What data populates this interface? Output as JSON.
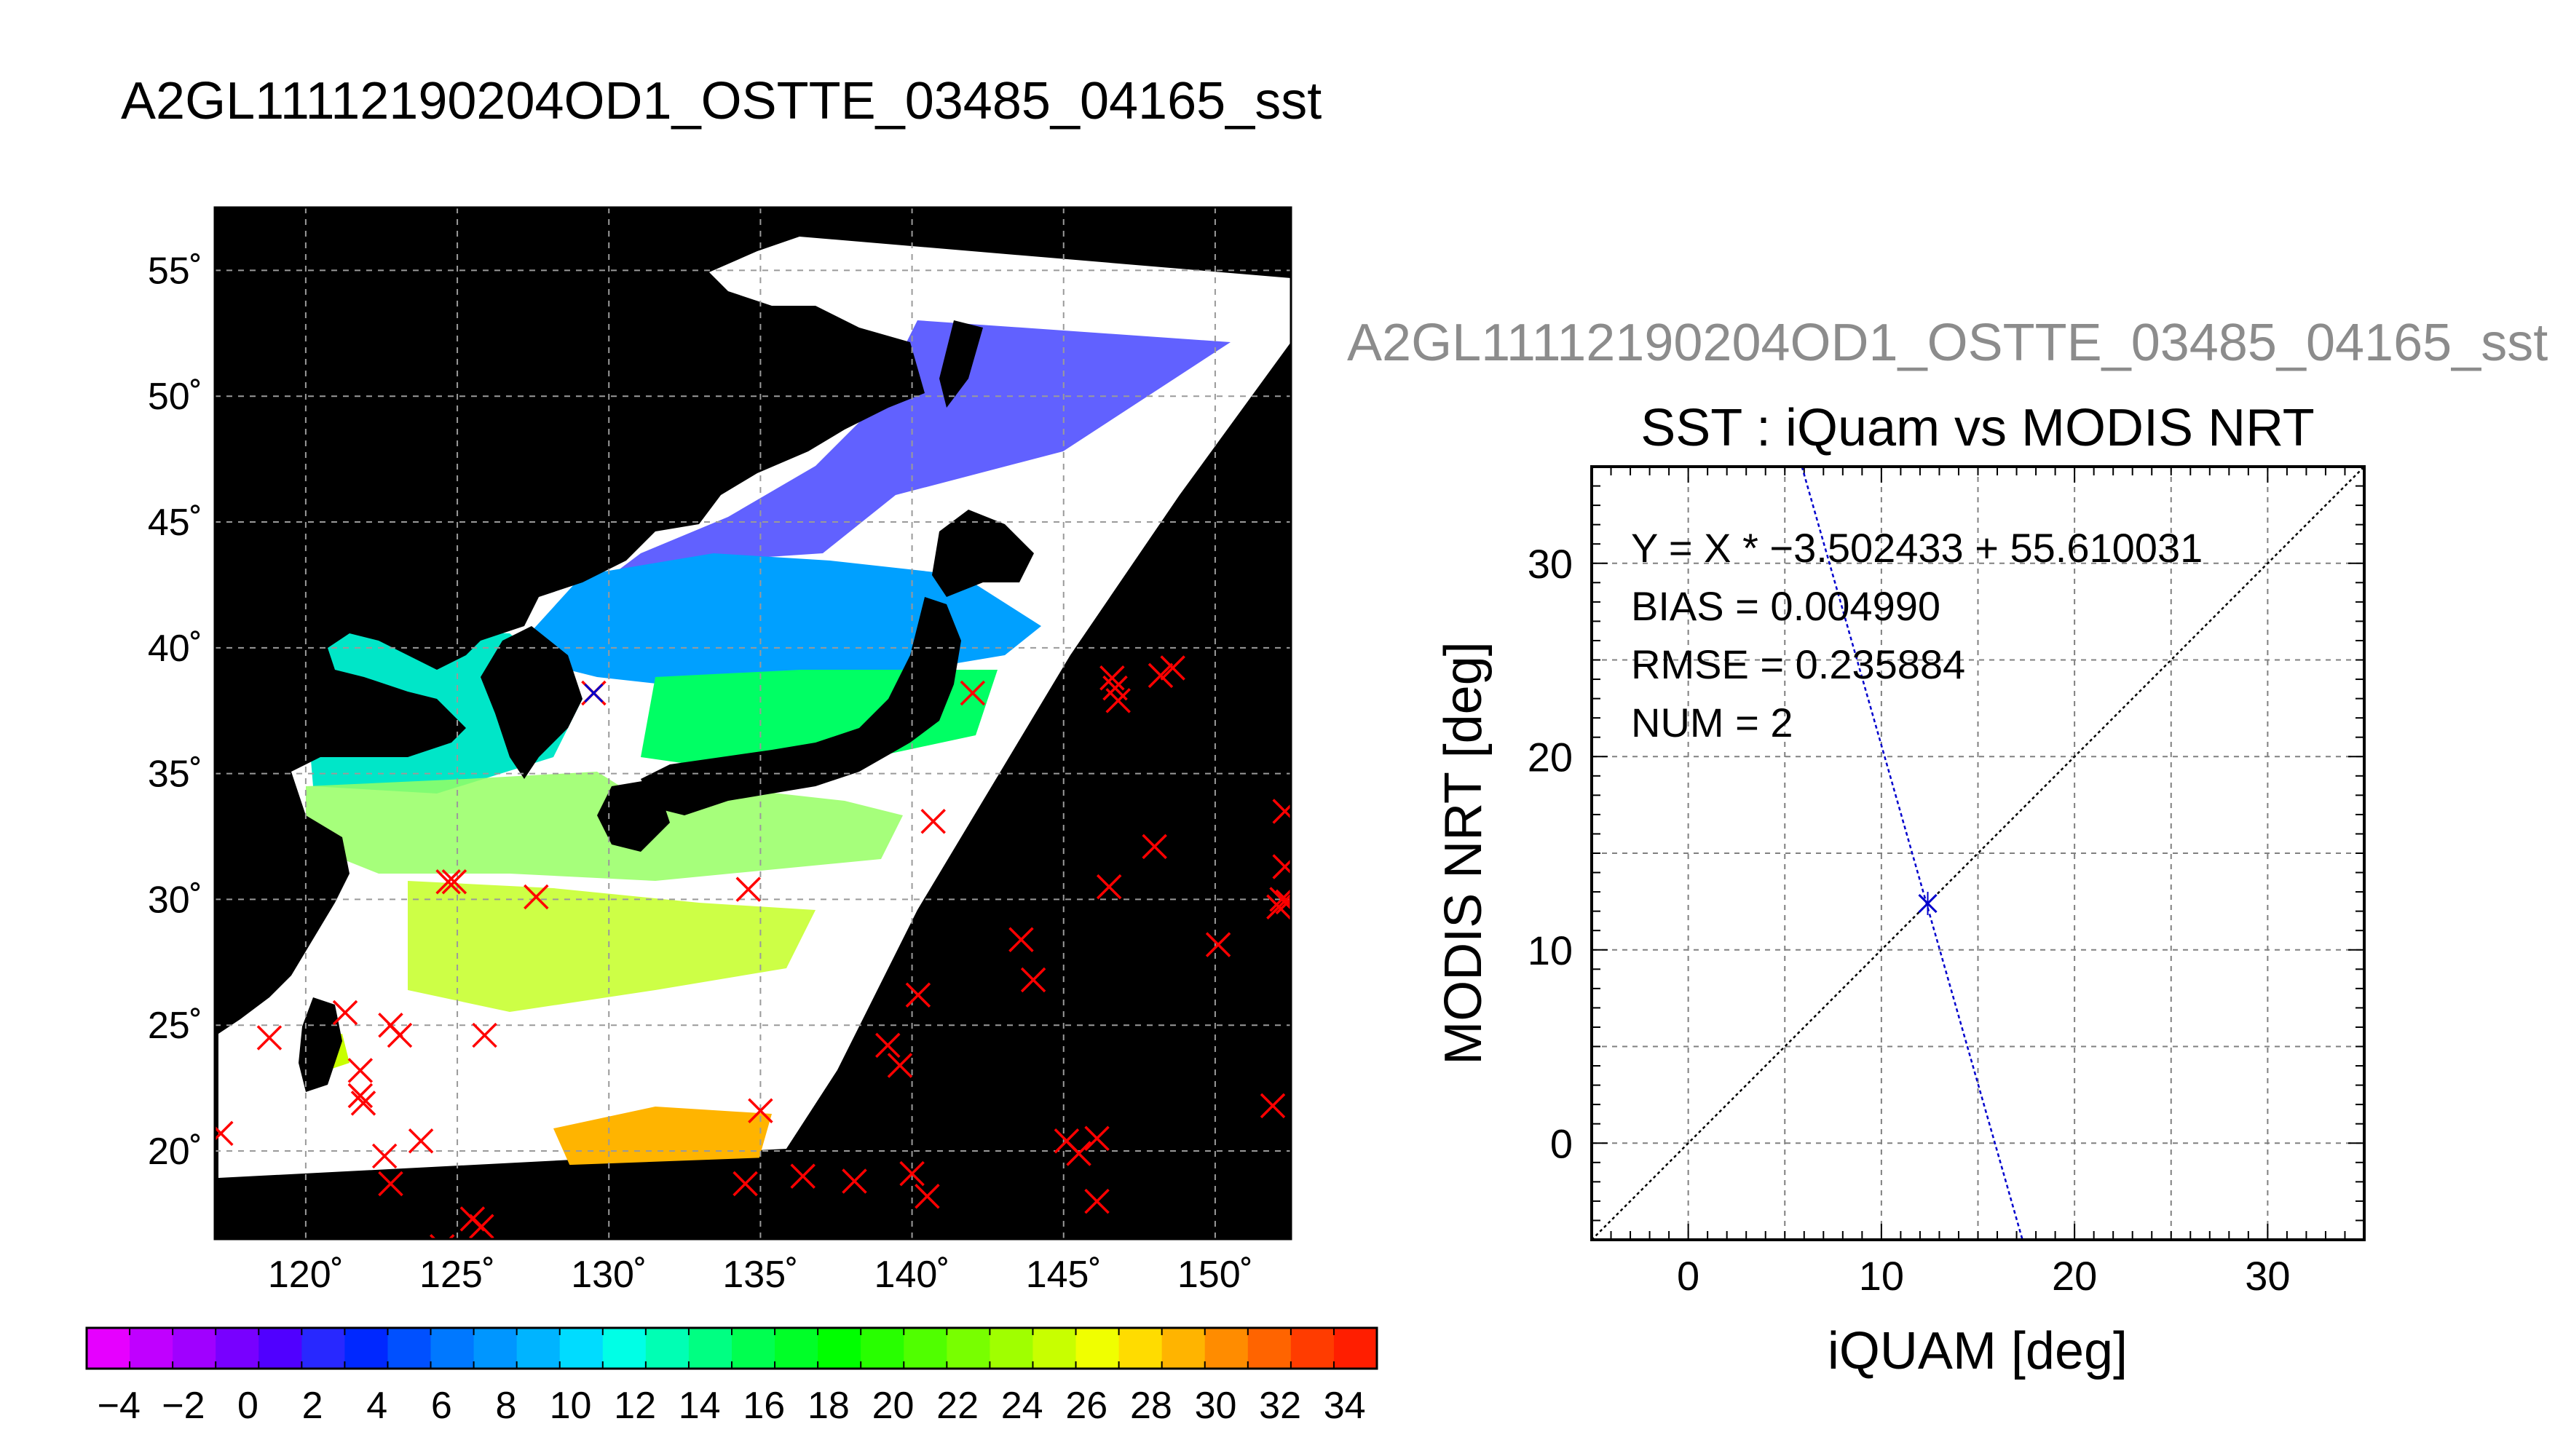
{
  "page_title": "A2GL11112190204OD1_OSTTE_03485_04165_sst",
  "scatter_file_title": "A2GL11112190204OD1_OSTTE_03485_04165_sst",
  "colors": {
    "match_marker": "#ff0000",
    "fit_line": "#0000cc",
    "one_to_one": "#000000",
    "land": "#000000",
    "no_data": "#ffffff"
  },
  "chart_data": [
    {
      "type": "map",
      "title": "",
      "lon_ticks": [
        "120˚",
        "125˚",
        "130˚",
        "135˚",
        "140˚",
        "145˚",
        "150˚"
      ],
      "lat_ticks": [
        "20˚",
        "25˚",
        "30˚",
        "35˚",
        "40˚",
        "45˚",
        "50˚",
        "55˚"
      ],
      "lon_range": [
        117,
        152.5
      ],
      "lat_range": [
        16.5,
        57.5
      ],
      "grid": true,
      "field": "sst",
      "match_locations": {
        "marker": "x",
        "points": [
          [
            117.2,
            20.7
          ],
          [
            118.8,
            24.5
          ],
          [
            121.3,
            25.5
          ],
          [
            121.8,
            23.2
          ],
          [
            121.8,
            22.2
          ],
          [
            121.9,
            21.9
          ],
          [
            122.6,
            19.8
          ],
          [
            122.8,
            18.7
          ],
          [
            122.8,
            25.0
          ],
          [
            123.1,
            24.6
          ],
          [
            123.8,
            20.4
          ],
          [
            124.5,
            16.2
          ],
          [
            124.7,
            30.7
          ],
          [
            124.9,
            30.7
          ],
          [
            125.5,
            17.3
          ],
          [
            125.8,
            17.0
          ],
          [
            125.9,
            24.6
          ],
          [
            127.6,
            30.1
          ],
          [
            134.5,
            18.7
          ],
          [
            134.6,
            30.4
          ],
          [
            135.0,
            21.6
          ],
          [
            136.4,
            19.0
          ],
          [
            138.1,
            18.8
          ],
          [
            139.2,
            24.2
          ],
          [
            139.6,
            23.4
          ],
          [
            140.0,
            19.1
          ],
          [
            140.2,
            26.2
          ],
          [
            140.5,
            18.2
          ],
          [
            140.7,
            33.1
          ],
          [
            142.0,
            38.2
          ],
          [
            143.6,
            28.4
          ],
          [
            144.0,
            26.8
          ],
          [
            145.1,
            20.4
          ],
          [
            145.5,
            19.9
          ],
          [
            146.1,
            20.5
          ],
          [
            146.1,
            18.0
          ],
          [
            146.5,
            30.5
          ],
          [
            146.6,
            38.8
          ],
          [
            146.7,
            38.4
          ],
          [
            146.8,
            37.9
          ],
          [
            148.0,
            32.1
          ],
          [
            148.2,
            38.9
          ],
          [
            148.6,
            39.2
          ],
          [
            150.1,
            28.2
          ],
          [
            151.9,
            21.8
          ],
          [
            152.1,
            29.7
          ],
          [
            152.2,
            30.0
          ],
          [
            152.3,
            31.3
          ],
          [
            152.3,
            33.5
          ],
          [
            152.4,
            29.9
          ]
        ],
        "highlight": {
          "lon": 129.5,
          "lat": 38.2,
          "marker": "x",
          "color": "#0000cc"
        }
      }
    },
    {
      "type": "colorbar",
      "tick_labels": [
        "−4",
        "−2",
        "0",
        "2",
        "4",
        "6",
        "8",
        "10",
        "12",
        "14",
        "16",
        "18",
        "20",
        "22",
        "24",
        "26",
        "28",
        "30",
        "32",
        "34"
      ],
      "range": [
        -5,
        35
      ],
      "colors": [
        "#e600ff",
        "#c000ff",
        "#a000ff",
        "#7800ff",
        "#5000ff",
        "#2828ff",
        "#0028ff",
        "#0050ff",
        "#0078ff",
        "#0096ff",
        "#00b4ff",
        "#00dcff",
        "#00ffe6",
        "#00ffb4",
        "#00ff82",
        "#00ff50",
        "#00ff28",
        "#00ff00",
        "#28ff00",
        "#50ff00",
        "#78ff00",
        "#a0ff00",
        "#c8ff00",
        "#f0ff00",
        "#ffdc00",
        "#ffb400",
        "#ff8c00",
        "#ff6400",
        "#ff3c00",
        "#ff1e00"
      ]
    },
    {
      "type": "scatter",
      "title": "SST : iQuam vs MODIS NRT",
      "xlabel": "iQUAM [deg]",
      "ylabel": "MODIS NRT [deg]",
      "x_ticks": [
        "0",
        "10",
        "20",
        "30"
      ],
      "y_ticks": [
        "0",
        "10",
        "20",
        "30"
      ],
      "xlim": [
        -5,
        35
      ],
      "ylim": [
        -5,
        35
      ],
      "grid": true,
      "points": [
        {
          "x": 12.4,
          "y": 12.4
        }
      ],
      "fit": {
        "slope": -3.502433,
        "intercept": 55.610031
      },
      "annotations": [
        "Y = X * −3.502433 + 55.610031",
        "BIAS = 0.004990",
        "RMSE = 0.235884",
        "NUM = 2"
      ]
    }
  ]
}
